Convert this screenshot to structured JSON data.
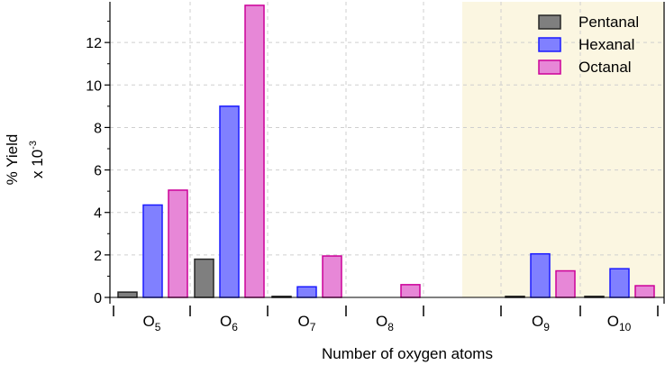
{
  "chart_data": {
    "type": "bar",
    "title": "",
    "xlabel": "Number of oxygen atoms",
    "ylabel": "% Yield",
    "ylabel_unit": "x 10",
    "ylabel_unit_exponent": "-3",
    "ylim": [
      0,
      14
    ],
    "yticks": [
      0,
      2,
      4,
      6,
      8,
      10,
      12
    ],
    "grid": true,
    "legend_position": "top-right",
    "highlight_region_color": "#fbf6e1",
    "highlighted_groups": [
      "O9",
      "O10"
    ],
    "categories": [
      {
        "base": "O",
        "sub": "5",
        "key": "O5"
      },
      {
        "base": "O",
        "sub": "6",
        "key": "O6"
      },
      {
        "base": "O",
        "sub": "7",
        "key": "O7"
      },
      {
        "base": "O",
        "sub": "8",
        "key": "O8"
      },
      {
        "base": "",
        "sub": "",
        "key": "gap"
      },
      {
        "base": "O",
        "sub": "9",
        "key": "O9"
      },
      {
        "base": "O",
        "sub": "10",
        "key": "O10"
      }
    ],
    "series": [
      {
        "name": "Pentanal",
        "fill": "#7f7f7f",
        "stroke": "#262626",
        "values": [
          0.25,
          1.8,
          0.05,
          null,
          null,
          0.05,
          0.05
        ]
      },
      {
        "name": "Hexanal",
        "fill": "#8080ff",
        "stroke": "#1a1aff",
        "values": [
          4.35,
          9.0,
          0.5,
          null,
          null,
          2.05,
          1.35
        ]
      },
      {
        "name": "Octanal",
        "fill": "#e787d7",
        "stroke": "#cc0099",
        "values": [
          5.05,
          13.75,
          1.95,
          0.6,
          null,
          1.25,
          0.55
        ]
      }
    ]
  }
}
